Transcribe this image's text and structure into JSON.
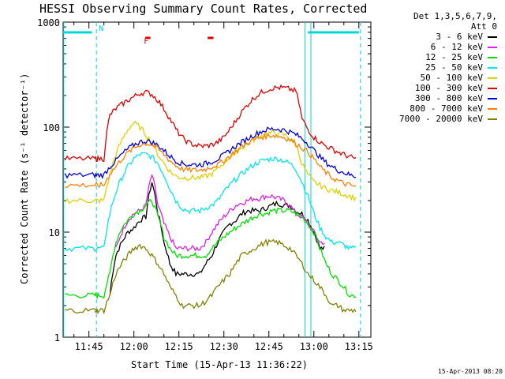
{
  "chart_data": {
    "type": "line",
    "title": "HESSI Observing Summary Count Rates, Corrected",
    "xlabel": "Start Time (15-Apr-13 11:36:22)",
    "ylabel": "Corrected Count Rate (s⁻¹ detector⁻¹)",
    "yscale": "log",
    "ylim": [
      1,
      1000
    ],
    "xlim_minutes": [
      36.4,
      139
    ],
    "x_ticks": [
      {
        "m": 45,
        "label": "11:45"
      },
      {
        "m": 60,
        "label": "12:00"
      },
      {
        "m": 75,
        "label": "12:15"
      },
      {
        "m": 90,
        "label": "12:30"
      },
      {
        "m": 105,
        "label": "12:45"
      },
      {
        "m": 120,
        "label": "13:00"
      },
      {
        "m": 135,
        "label": "13:15"
      }
    ],
    "y_ticks": [
      {
        "v": 1,
        "label": "1"
      },
      {
        "v": 10,
        "label": "10"
      },
      {
        "v": 100,
        "label": "100"
      },
      {
        "v": 1000,
        "label": "1000"
      }
    ],
    "x": [
      37,
      40,
      44,
      47,
      48,
      50,
      52,
      54,
      56,
      58,
      60,
      62,
      64,
      66,
      68,
      70,
      72,
      74,
      76,
      78,
      80,
      82,
      84,
      86,
      88,
      90,
      92,
      94,
      96,
      98,
      100,
      102,
      104,
      106,
      108,
      110,
      112,
      114,
      116,
      118,
      120,
      122,
      124,
      126,
      128,
      130,
      132,
      134
    ],
    "series": [
      {
        "name": "3 - 6 keV",
        "color": "#000000",
        "values": [
          null,
          null,
          null,
          null,
          null,
          null,
          2.5,
          6,
          8,
          10,
          11,
          13,
          14,
          30,
          15,
          8,
          5,
          4,
          4,
          4,
          4,
          4,
          5,
          6,
          8,
          10,
          12,
          13,
          15,
          16,
          16,
          16,
          17,
          18,
          19,
          18,
          18,
          16,
          15,
          13,
          10,
          7,
          null,
          null,
          null,
          null,
          null,
          null
        ]
      },
      {
        "name": "6 - 12 keV",
        "color": "#e020e0",
        "values": [
          null,
          null,
          null,
          null,
          null,
          null,
          null,
          7,
          10,
          13,
          15,
          16,
          18,
          35,
          18,
          12,
          9,
          7,
          7,
          7,
          7,
          7,
          8,
          10,
          12,
          14,
          16,
          18,
          19,
          20,
          21,
          21,
          22,
          22,
          21,
          20,
          18,
          15,
          14,
          12,
          10,
          8,
          null,
          null,
          null,
          null,
          null,
          null
        ]
      },
      {
        "name": "12 - 25 keV",
        "color": "#00e000",
        "values": [
          2.5,
          2.5,
          2.5,
          2.5,
          2.5,
          2.5,
          4,
          8,
          11,
          13,
          15,
          16,
          18,
          20,
          14,
          9,
          7,
          6,
          6,
          6,
          6,
          6,
          6,
          7,
          8,
          9,
          10,
          11,
          12,
          13,
          14,
          15,
          15,
          16,
          16,
          16,
          16,
          15,
          14,
          12,
          10,
          7,
          5,
          4,
          3.5,
          3,
          2.5,
          2.5
        ]
      },
      {
        "name": "25 - 50 keV",
        "color": "#00e8e8",
        "values": [
          7,
          7,
          7,
          7,
          7,
          7,
          15,
          24,
          33,
          42,
          50,
          55,
          55,
          52,
          45,
          35,
          26,
          20,
          17,
          16,
          16,
          16,
          17,
          18,
          20,
          24,
          28,
          32,
          36,
          40,
          44,
          47,
          49,
          50,
          50,
          48,
          45,
          40,
          30,
          22,
          15,
          11,
          9,
          8,
          8,
          7.5,
          7,
          7
        ]
      },
      {
        "name": "50 - 100 keV",
        "color": "#e0d000",
        "values": [
          20,
          20,
          20,
          20,
          20,
          20,
          35,
          55,
          75,
          95,
          110,
          100,
          85,
          70,
          55,
          45,
          38,
          34,
          33,
          33,
          33,
          33,
          34,
          36,
          40,
          46,
          52,
          58,
          64,
          70,
          76,
          82,
          86,
          88,
          88,
          85,
          78,
          68,
          45,
          35,
          30,
          28,
          26,
          25,
          24,
          23,
          22,
          21
        ]
      },
      {
        "name": "100 - 300 keV",
        "color": "#e00000",
        "values": [
          50,
          50,
          50,
          50,
          50,
          50,
          130,
          150,
          165,
          180,
          195,
          210,
          215,
          205,
          180,
          150,
          120,
          95,
          80,
          72,
          68,
          66,
          66,
          68,
          72,
          80,
          95,
          115,
          140,
          165,
          190,
          210,
          225,
          235,
          238,
          236,
          230,
          220,
          120,
          95,
          80,
          72,
          66,
          62,
          58,
          55,
          52,
          50
        ]
      },
      {
        "name": "300 - 800 keV",
        "color": "#0000e0",
        "values": [
          35,
          35,
          35,
          35,
          35,
          35,
          42,
          48,
          55,
          62,
          68,
          72,
          74,
          72,
          67,
          60,
          53,
          48,
          45,
          44,
          44,
          44,
          45,
          47,
          50,
          54,
          60,
          66,
          72,
          78,
          84,
          90,
          94,
          96,
          96,
          94,
          90,
          85,
          78,
          70,
          60,
          52,
          46,
          42,
          39,
          37,
          35,
          34
        ]
      },
      {
        "name": "800 - 7000 keV",
        "color": "#ff8000",
        "values": [
          28,
          28,
          28,
          28,
          28,
          28,
          36,
          42,
          50,
          57,
          63,
          68,
          70,
          68,
          62,
          55,
          48,
          43,
          40,
          39,
          39,
          39,
          40,
          42,
          44,
          48,
          53,
          59,
          65,
          71,
          76,
          80,
          82,
          84,
          82,
          80,
          76,
          70,
          64,
          58,
          50,
          42,
          37,
          33,
          31,
          29,
          28,
          27
        ]
      },
      {
        "name": "7000 - 20000 keV",
        "color": "#808000",
        "values": [
          1.8,
          1.8,
          1.8,
          1.8,
          1.8,
          1.8,
          2.5,
          4,
          5,
          6,
          7,
          7.5,
          7,
          6,
          5,
          4,
          3,
          2.5,
          2,
          2,
          2,
          2,
          2.2,
          2.5,
          3,
          3.5,
          4,
          5,
          6,
          6.5,
          7,
          7.5,
          8,
          8,
          8,
          7.5,
          7,
          6,
          5,
          4,
          3.5,
          3,
          2.5,
          2,
          2,
          1.8,
          1.8,
          1.8
        ]
      }
    ],
    "annotations": [
      {
        "text": "N",
        "m": 47.5,
        "v": 800
      },
      {
        "text": "F",
        "m": 62.5,
        "v": 600
      }
    ],
    "legend": {
      "position": "right",
      "header": [
        "Det 1,3,5,6,7,9,",
        "Att 0"
      ]
    }
  },
  "footer_stamp": "15-Apr-2013 08:20"
}
